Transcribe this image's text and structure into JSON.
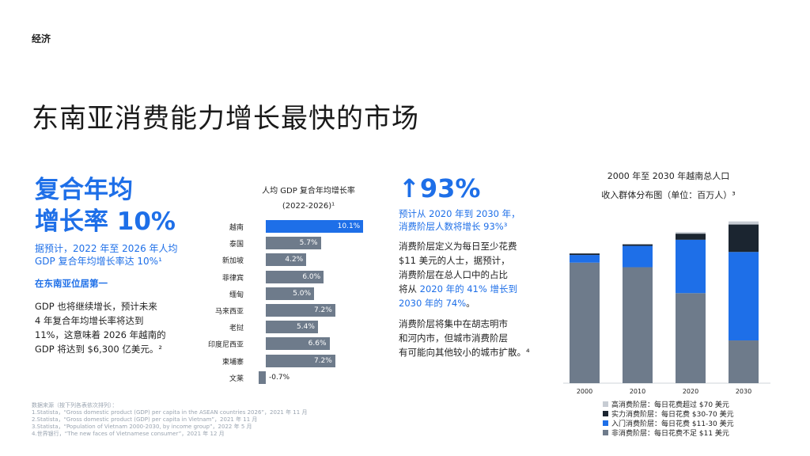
{
  "header": {
    "section": "经济"
  },
  "page_title": "东南亚消费能力增长最快的市场",
  "left": {
    "headline_1": "复合年均",
    "headline_2": "增长率 10%",
    "sub_1": "据预计，2022 年至 2026 年人均",
    "sub_2": "GDP 复合年均增长率达 10%¹",
    "rank_heading": "在东南亚位居第一",
    "body": [
      "GDP 也将继续增长，预计未来",
      "4 年复合年均增长率将达到",
      "11%，这意味着 2026 年越南的",
      "GDP 将达到 $6,300 亿美元。²"
    ]
  },
  "gdp_chart": {
    "title_1": "人均 GDP 复合年均增长率",
    "title_2": "(2022-2026)¹",
    "colors": {
      "highlight": "#1e6fe8",
      "normal": "#6e7b8b"
    }
  },
  "middle": {
    "stat_arrow": "↑",
    "stat": "93%",
    "stat_sub_1": "预计从 2020 年到 2030 年，",
    "stat_sub_2": "消费阶层人数将增长 93%³",
    "p1": [
      "消费阶层定义为每日至少花费",
      "$11 美元的人士，据预计，",
      "消费阶层在总人口中的占比"
    ],
    "p1_l4_a": "将从 ",
    "p1_l4_b": "2020 年的 41% 增长到",
    "p1_l5_a": "2030 年的 74%",
    "p1_l5_b": "。",
    "p2": [
      "消费阶层将集中在胡志明市",
      "和河内市，但城市消费阶层",
      "有可能向其他较小的城市扩散。⁴"
    ]
  },
  "pop_chart": {
    "title_1": "2000 年至 2030 年越南总人口",
    "title_2": "收入群体分布图（单位：百万人）³",
    "colors": [
      "#6e7b8b",
      "#1e6fe8",
      "#1b2530",
      "#c7ccd3"
    ]
  },
  "chart_data": [
    {
      "type": "bar",
      "orientation": "horizontal",
      "title": "人均 GDP 复合年均增长率 (2022-2026)",
      "categories": [
        "越南",
        "泰国",
        "新加坡",
        "菲律宾",
        "缅甸",
        "马来西亚",
        "老挝",
        "印度尼西亚",
        "柬埔寨",
        "文莱"
      ],
      "values": [
        10.1,
        5.7,
        4.2,
        6.0,
        5.0,
        7.2,
        5.4,
        6.6,
        7.2,
        -0.7
      ],
      "labels": [
        "10.1%",
        "5.7%",
        "4.2%",
        "6.0%",
        "5.0%",
        "7.2%",
        "5.4%",
        "6.6%",
        "7.2%",
        "-0.7%"
      ],
      "xlim": [
        -1,
        11
      ]
    },
    {
      "type": "bar",
      "stacked": true,
      "title": "2000 年至 2030 年越南总人口收入群体分布图（单位：百万人）",
      "categories": [
        "2000",
        "2010",
        "2020",
        "2030"
      ],
      "series": [
        {
          "name": "非消费阶层：每日花费不足 $11 美元",
          "values": [
            79,
            76,
            59,
            28
          ]
        },
        {
          "name": "入门消费阶层：每日花费 $11-30 美元",
          "values": [
            5,
            14,
            35,
            58
          ]
        },
        {
          "name": "实力消费阶层：每日花费 $30-70 美元",
          "values": [
            1,
            1,
            4,
            18
          ]
        },
        {
          "name": "高消费阶层：每日花费超过 $70 美元",
          "values": [
            0,
            0,
            1,
            2
          ]
        }
      ],
      "legend_order": [
        3,
        2,
        1,
        0
      ],
      "ylim": [
        0,
        110
      ]
    }
  ],
  "notes": {
    "lines": [
      "数据来源（按下列各表依次排列）：",
      "1.Statista，“Gross domestic product (GDP) per capita in the ASEAN countries 2026”，2021 年 11 月",
      "2.Statista，“Gross domestic product (GDP) per capita in Vietnam”，2021 年 11 月",
      "3.Statista，“Population of Vietnam 2000-2030, by income group”，2022 年 5 月",
      "4.世界银行，“The new faces of Vietnamese consumer”，2021 年 12 月"
    ]
  }
}
